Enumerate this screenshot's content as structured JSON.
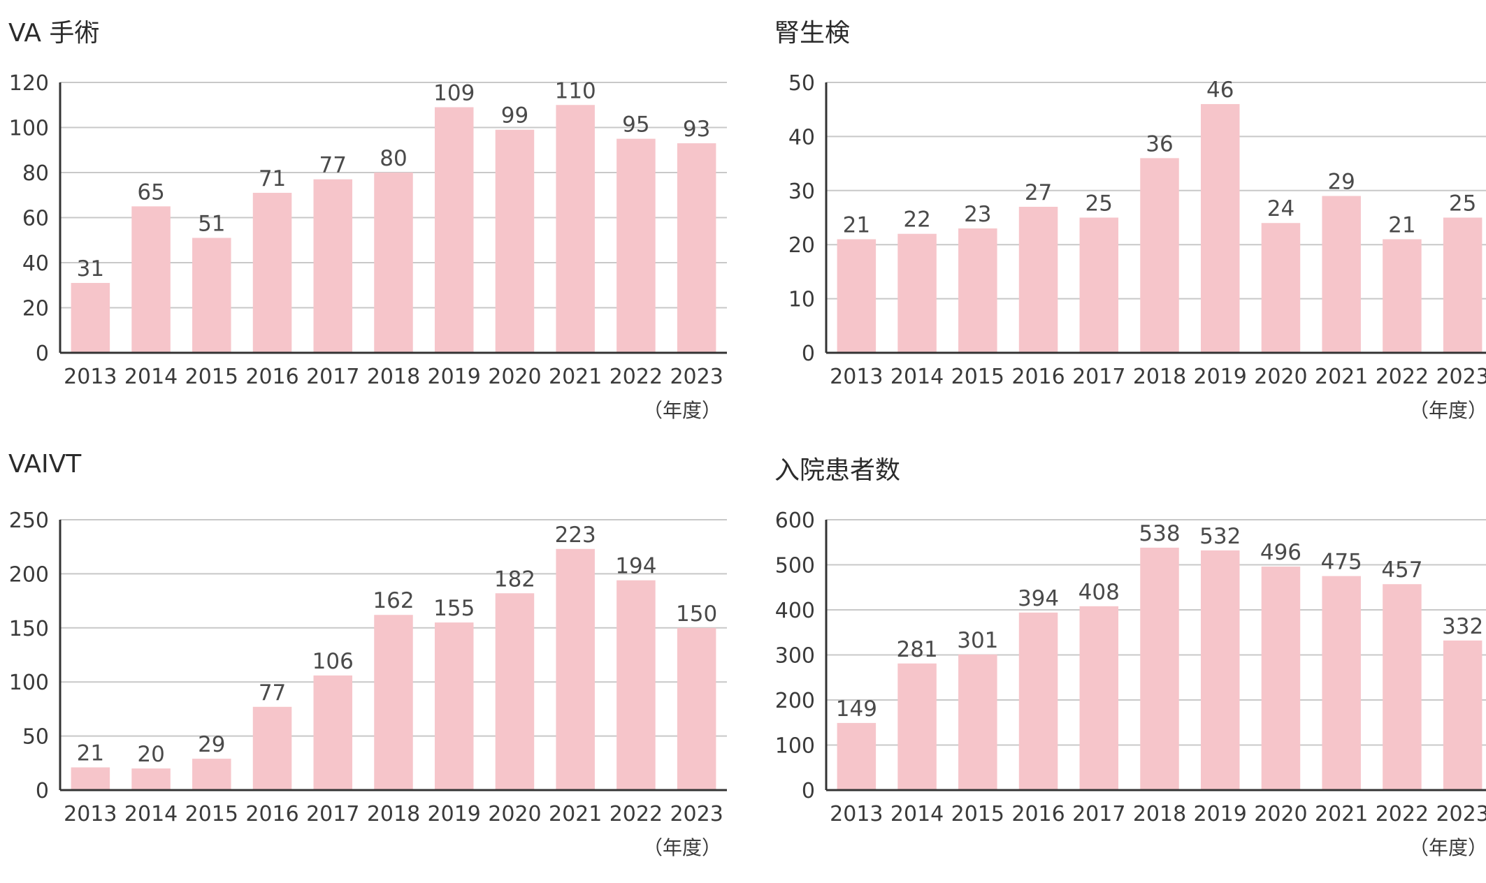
{
  "bar_color": "#f6c5ca",
  "grid_color": "#c8c8c8",
  "axis_color": "#333333",
  "chart_data": [
    {
      "type": "bar",
      "title": "VA 手術",
      "unit": "（年度）",
      "categories": [
        "2013",
        "2014",
        "2015",
        "2016",
        "2017",
        "2018",
        "2019",
        "2020",
        "2021",
        "2022",
        "2023"
      ],
      "values": [
        31,
        65,
        51,
        71,
        77,
        80,
        109,
        99,
        110,
        95,
        93
      ],
      "ylim": [
        0,
        120
      ],
      "yticks": [
        0,
        20,
        40,
        60,
        80,
        100,
        120
      ],
      "grid": true
    },
    {
      "type": "bar",
      "title": "腎生検",
      "unit": "（年度）",
      "categories": [
        "2013",
        "2014",
        "2015",
        "2016",
        "2017",
        "2018",
        "2019",
        "2020",
        "2021",
        "2022",
        "2023"
      ],
      "values": [
        21,
        22,
        23,
        27,
        25,
        36,
        46,
        24,
        29,
        21,
        25
      ],
      "ylim": [
        0,
        50
      ],
      "yticks": [
        0,
        10,
        20,
        30,
        40,
        50
      ],
      "grid": true
    },
    {
      "type": "bar",
      "title": "VAIVT",
      "unit": "（年度）",
      "categories": [
        "2013",
        "2014",
        "2015",
        "2016",
        "2017",
        "2018",
        "2019",
        "2020",
        "2021",
        "2022",
        "2023"
      ],
      "values": [
        21,
        20,
        29,
        77,
        106,
        162,
        155,
        182,
        223,
        194,
        150
      ],
      "ylim": [
        0,
        250
      ],
      "yticks": [
        0,
        50,
        100,
        150,
        200,
        250
      ],
      "grid": true
    },
    {
      "type": "bar",
      "title": "入院患者数",
      "unit": "（年度）",
      "categories": [
        "2013",
        "2014",
        "2015",
        "2016",
        "2017",
        "2018",
        "2019",
        "2020",
        "2021",
        "2022",
        "2023"
      ],
      "values": [
        149,
        281,
        301,
        394,
        408,
        538,
        532,
        496,
        475,
        457,
        332
      ],
      "ylim": [
        0,
        600
      ],
      "yticks": [
        0,
        100,
        200,
        300,
        400,
        500,
        600
      ],
      "grid": true
    }
  ]
}
